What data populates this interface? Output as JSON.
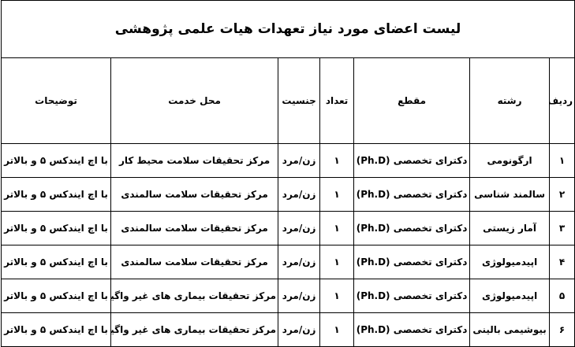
{
  "title": "لیست اعضای مورد نیاز تعهدات هیات علمی پژوهشی",
  "headers": [
    "ردیف",
    "رشته",
    "مقطع",
    "تعداد",
    "جنسیت",
    "محل خدمت",
    "توضیحات"
  ],
  "rows": [
    [
      "۱",
      "ارگونومی",
      "دکترای تخصصی (Ph.D)",
      "۱",
      "زن/مرد",
      "مرکز تحقیقات سلامت محیط کار",
      "با اچ ایندکس ۵ و بالاتر"
    ],
    [
      "۲",
      "سالمند شناسی",
      "دکترای تخصصی (Ph.D)",
      "۱",
      "زن/مرد",
      "مرکز تحقیقات سلامت سالمندی",
      "با اچ ایندکس ۵ و بالاتر"
    ],
    [
      "۳",
      "آمار زیستی",
      "دکترای تخصصی (Ph.D)",
      "۱",
      "زن/مرد",
      "مرکز تحقیقات سلامت سالمندی",
      "با اچ ایندکس ۵ و بالاتر"
    ],
    [
      "۴",
      "اپیدمیولوژی",
      "دکترای تخصصی (Ph.D)",
      "۱",
      "زن/مرد",
      "مرکز تحقیقات سلامت سالمندی",
      "با اچ ایندکس ۵ و بالاتر"
    ],
    [
      "۵",
      "اپیدمیولوژی",
      "دکترای تخصصی (Ph.D)",
      "۱",
      "زن/مرد",
      "مرکز تحقیقات بیماری های غیر واگیر",
      "با اچ ایندکس ۵ و بالاتر"
    ],
    [
      "۶",
      "بیوشیمی بالینی",
      "دکترای تخصصی (Ph.D)",
      "۱",
      "زن/مرد",
      "مرکز تحقیقات بیماری های غیر واگیر",
      "با اچ ایندکس ۵ و بالاتر"
    ]
  ]
}
